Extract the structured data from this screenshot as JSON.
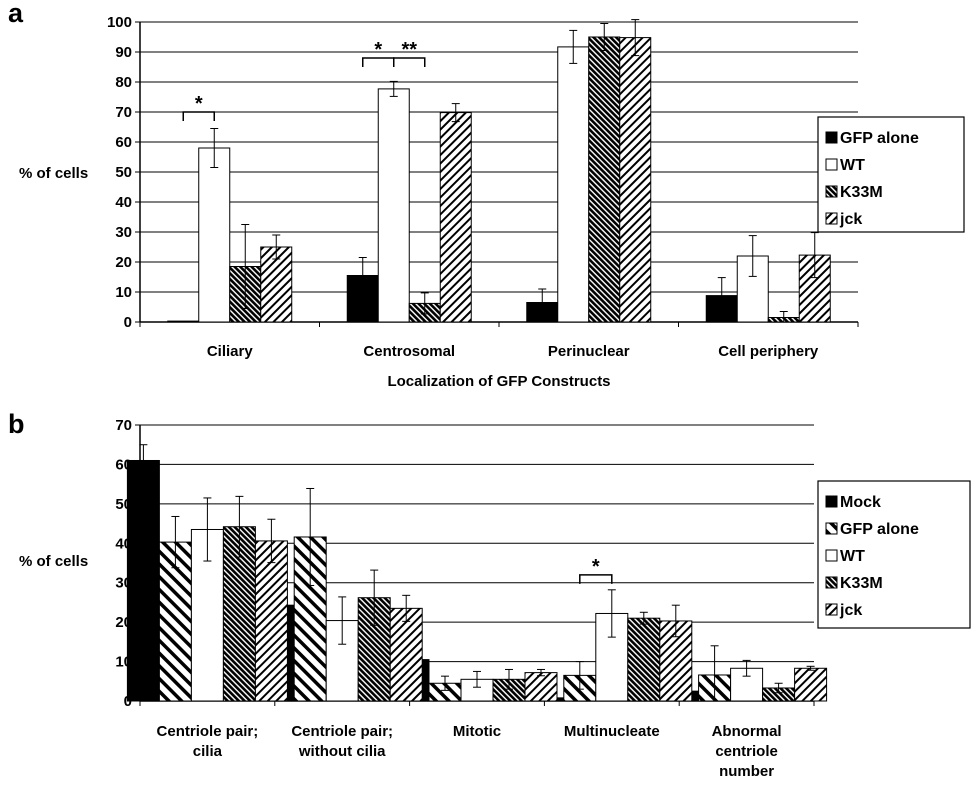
{
  "chart_data": [
    {
      "panel": "a",
      "type": "bar",
      "ylabel": "% of cells",
      "xlabel": "Localization of GFP Constructs",
      "ylim": [
        0,
        100
      ],
      "yticks": [
        0,
        10,
        20,
        30,
        40,
        50,
        60,
        70,
        80,
        90,
        100
      ],
      "grid": true,
      "legend_position": "right",
      "categories": [
        "Ciliary",
        "Centrosomal",
        "Perinuclear",
        "Cell periphery"
      ],
      "series": [
        {
          "name": "GFP alone",
          "pattern": "solid",
          "values": [
            0.3,
            15.5,
            6.5,
            8.8
          ],
          "errors": [
            0,
            6,
            4.5,
            6
          ]
        },
        {
          "name": "WT",
          "pattern": "open",
          "values": [
            58,
            77.7,
            91.7,
            22
          ],
          "errors": [
            6.5,
            2.5,
            5.5,
            6.8
          ]
        },
        {
          "name": "K33M",
          "pattern": "dense",
          "values": [
            18.5,
            6.2,
            95,
            1.5
          ],
          "errors": [
            14,
            3.5,
            4.5,
            2
          ]
        },
        {
          "name": "jck",
          "pattern": "hatch",
          "values": [
            25,
            69.8,
            94.8,
            22.3
          ],
          "errors": [
            4,
            3,
            6,
            7.5
          ]
        }
      ],
      "annotations": [
        {
          "text": "*",
          "category": 0,
          "from_series": 0,
          "to_series": 1,
          "y": 70
        },
        {
          "text": "*",
          "category": 1,
          "from_series": 0,
          "to_series": 1,
          "y": 88
        },
        {
          "text": "**",
          "category": 1,
          "from_series": 1,
          "to_series": 2,
          "y": 88
        }
      ]
    },
    {
      "panel": "b",
      "type": "bar",
      "ylabel": "% of cells",
      "ylim": [
        0,
        70
      ],
      "yticks": [
        0,
        10,
        20,
        30,
        40,
        50,
        60,
        70
      ],
      "grid": true,
      "legend_position": "right",
      "categories": [
        [
          "Centriole pair;",
          "cilia"
        ],
        [
          "Centriole pair;",
          "without cilia"
        ],
        [
          "Mitotic"
        ],
        [
          "Multinucleate"
        ],
        [
          "Abnormal",
          "centriole",
          "number"
        ]
      ],
      "series": [
        {
          "name": "Mock",
          "pattern": "solid",
          "values": [
            61,
            24.3,
            10.5,
            0.8,
            2.5
          ],
          "errors": [
            4,
            5.5,
            2,
            0.3,
            0.8
          ]
        },
        {
          "name": "GFP alone",
          "pattern": "diag",
          "values": [
            40.3,
            41.6,
            4.5,
            6.5,
            6.6
          ],
          "errors": [
            6.5,
            12.3,
            1.8,
            3.5,
            7.4
          ]
        },
        {
          "name": "WT",
          "pattern": "open",
          "values": [
            43.5,
            20.4,
            5.5,
            22.2,
            8.3
          ],
          "errors": [
            8,
            6,
            2,
            6,
            2
          ]
        },
        {
          "name": "K33M",
          "pattern": "dense",
          "values": [
            44.2,
            26.2,
            5.5,
            21,
            3.3
          ],
          "errors": [
            7.7,
            7,
            2.5,
            1.5,
            1.2
          ]
        },
        {
          "name": "jck",
          "pattern": "hatch",
          "values": [
            40.6,
            23.5,
            7.2,
            20.3,
            8.3
          ],
          "errors": [
            5.5,
            3.3,
            0.8,
            4,
            0.5
          ]
        }
      ],
      "annotations": [
        {
          "text": "*",
          "category": 3,
          "from_series": 1,
          "to_series": 2,
          "y": 32
        }
      ]
    }
  ]
}
